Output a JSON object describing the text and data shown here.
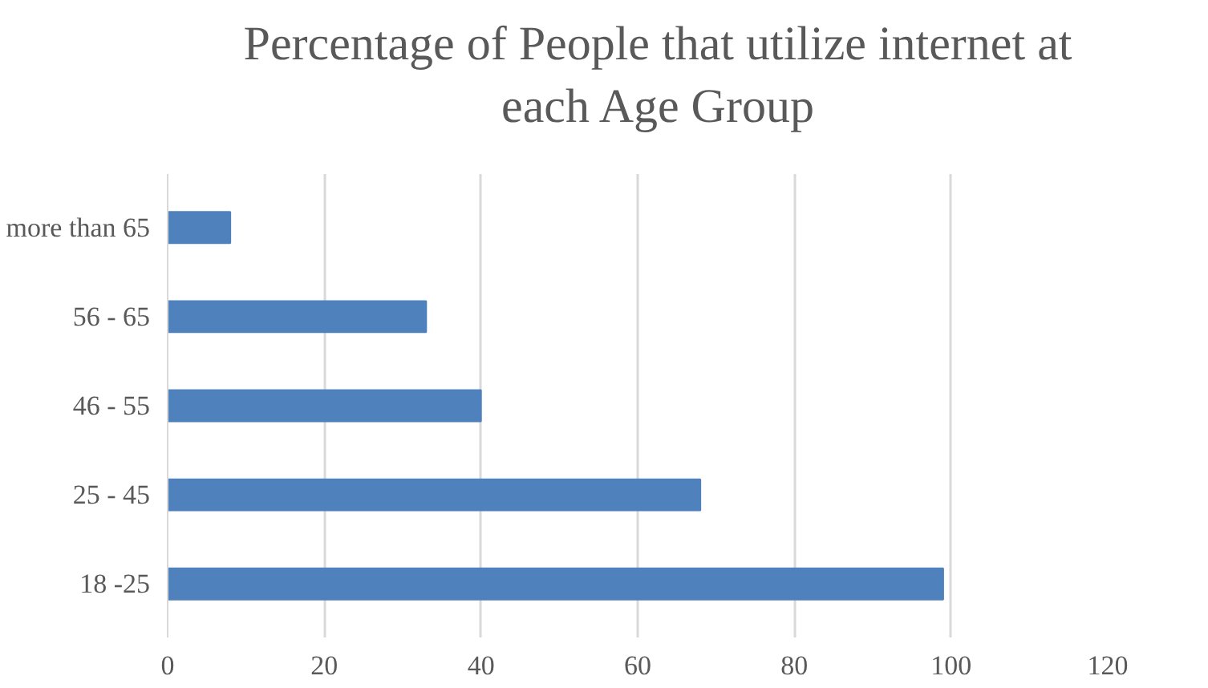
{
  "chart_data": {
    "type": "bar",
    "orientation": "horizontal",
    "title": "Percentage of People that utilize internet at each Age Group",
    "categories": [
      "more than 65",
      "56 - 65",
      "46 - 55",
      "25 - 45",
      "18 -25"
    ],
    "values": [
      8,
      33,
      40,
      68,
      99
    ],
    "color": "#4f81bd",
    "xlim": [
      0,
      120
    ],
    "xticks": [
      0,
      20,
      40,
      60,
      80,
      100,
      120
    ],
    "grid": "x"
  }
}
